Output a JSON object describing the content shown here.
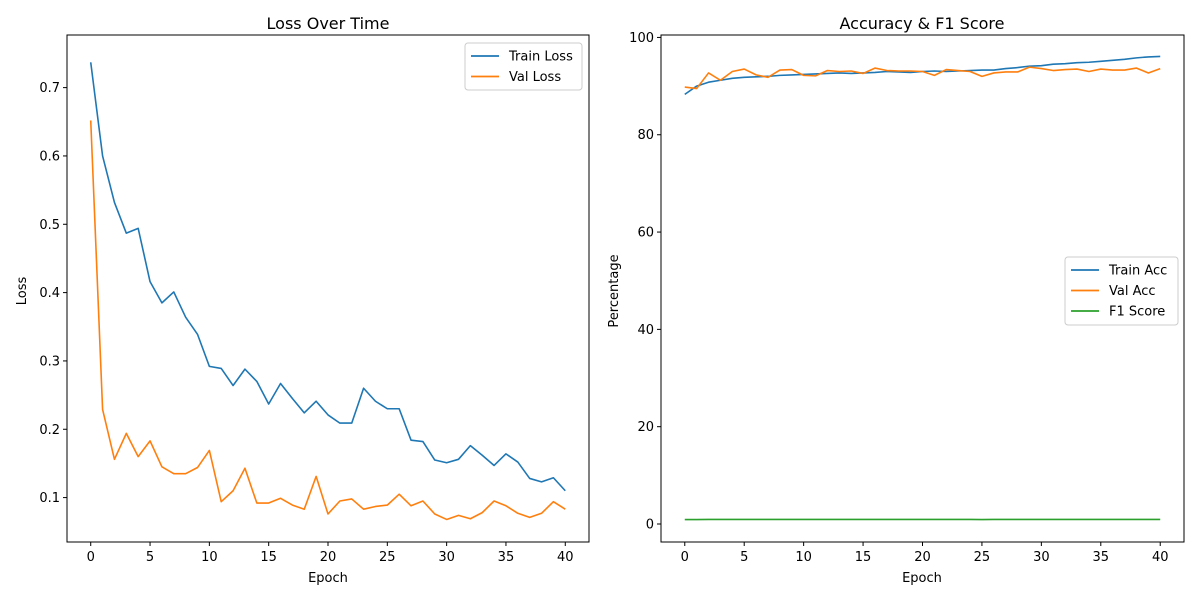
{
  "chart_data": [
    {
      "type": "line",
      "title": "Loss Over Time",
      "xlabel": "Epoch",
      "ylabel": "Loss",
      "xlim": [
        -2,
        42
      ],
      "ylim": [
        0.035,
        0.777
      ],
      "xticks": [
        0,
        5,
        10,
        15,
        20,
        25,
        30,
        35,
        40
      ],
      "yticks": [
        0.1,
        0.2,
        0.3,
        0.4,
        0.5,
        0.6,
        0.7
      ],
      "legend": "top-right",
      "grid": false,
      "x": [
        0,
        1,
        2,
        3,
        4,
        5,
        6,
        7,
        8,
        9,
        10,
        11,
        12,
        13,
        14,
        15,
        16,
        17,
        18,
        19,
        20,
        21,
        22,
        23,
        24,
        25,
        26,
        27,
        28,
        29,
        30,
        31,
        32,
        33,
        34,
        35,
        36,
        37,
        38,
        39,
        40
      ],
      "series": [
        {
          "name": "Train Loss",
          "color": "#1f77b4",
          "values": [
            0.737,
            0.6,
            0.532,
            0.487,
            0.494,
            0.416,
            0.385,
            0.401,
            0.364,
            0.339,
            0.292,
            0.289,
            0.264,
            0.288,
            0.27,
            0.237,
            0.267,
            0.245,
            0.224,
            0.241,
            0.221,
            0.209,
            0.209,
            0.26,
            0.241,
            0.23,
            0.23,
            0.184,
            0.182,
            0.155,
            0.151,
            0.156,
            0.176,
            0.162,
            0.147,
            0.164,
            0.152,
            0.128,
            0.123,
            0.129,
            0.11
          ]
        },
        {
          "name": "Val Loss",
          "color": "#ff7f0e",
          "values": [
            0.652,
            0.229,
            0.156,
            0.194,
            0.16,
            0.183,
            0.145,
            0.135,
            0.135,
            0.144,
            0.169,
            0.094,
            0.11,
            0.143,
            0.092,
            0.092,
            0.099,
            0.089,
            0.083,
            0.131,
            0.076,
            0.095,
            0.098,
            0.083,
            0.087,
            0.089,
            0.105,
            0.088,
            0.095,
            0.076,
            0.068,
            0.074,
            0.069,
            0.078,
            0.095,
            0.088,
            0.077,
            0.071,
            0.077,
            0.094,
            0.083
          ]
        }
      ]
    },
    {
      "type": "line",
      "title": "Accuracy & F1 Score",
      "xlabel": "Epoch",
      "ylabel": "Percentage",
      "xlim": [
        -2,
        42
      ],
      "ylim": [
        -3.7,
        100.5
      ],
      "xticks": [
        0,
        5,
        10,
        15,
        20,
        25,
        30,
        35,
        40
      ],
      "yticks": [
        0,
        20,
        40,
        60,
        80,
        100
      ],
      "legend": "center-right",
      "grid": false,
      "x": [
        0,
        1,
        2,
        3,
        4,
        5,
        6,
        7,
        8,
        9,
        10,
        11,
        12,
        13,
        14,
        15,
        16,
        17,
        18,
        19,
        20,
        21,
        22,
        23,
        24,
        25,
        26,
        27,
        28,
        29,
        30,
        31,
        32,
        33,
        34,
        35,
        36,
        37,
        38,
        39,
        40
      ],
      "series": [
        {
          "name": "Train Acc",
          "color": "#1f77b4",
          "values": [
            88.3,
            90.0,
            90.8,
            91.2,
            91.6,
            91.8,
            91.9,
            92.0,
            92.2,
            92.3,
            92.4,
            92.5,
            92.6,
            92.7,
            92.6,
            92.7,
            92.8,
            93.0,
            92.9,
            92.8,
            93.0,
            93.1,
            93.0,
            93.1,
            93.2,
            93.3,
            93.3,
            93.6,
            93.8,
            94.1,
            94.2,
            94.5,
            94.6,
            94.8,
            94.9,
            95.1,
            95.3,
            95.5,
            95.8,
            96.0,
            96.1
          ]
        },
        {
          "name": "Val Acc",
          "color": "#ff7f0e",
          "values": [
            89.8,
            89.5,
            92.7,
            91.2,
            93.0,
            93.5,
            92.3,
            91.8,
            93.3,
            93.4,
            92.2,
            92.1,
            93.2,
            93.0,
            93.1,
            92.6,
            93.7,
            93.2,
            93.1,
            93.1,
            93.0,
            92.2,
            93.4,
            93.2,
            93.0,
            92.0,
            92.7,
            92.9,
            92.9,
            93.9,
            93.6,
            93.2,
            93.4,
            93.5,
            93.0,
            93.5,
            93.3,
            93.3,
            93.7,
            92.7,
            93.6
          ]
        },
        {
          "name": "F1 Score",
          "color": "#2ca02c",
          "values": [
            0.92,
            0.92,
            0.93,
            0.93,
            0.93,
            0.94,
            0.93,
            0.93,
            0.94,
            0.94,
            0.93,
            0.93,
            0.93,
            0.93,
            0.93,
            0.93,
            0.94,
            0.93,
            0.93,
            0.93,
            0.93,
            0.93,
            0.93,
            0.93,
            0.93,
            0.92,
            0.93,
            0.93,
            0.93,
            0.94,
            0.94,
            0.93,
            0.93,
            0.94,
            0.93,
            0.94,
            0.93,
            0.93,
            0.94,
            0.93,
            0.94
          ]
        }
      ]
    }
  ]
}
